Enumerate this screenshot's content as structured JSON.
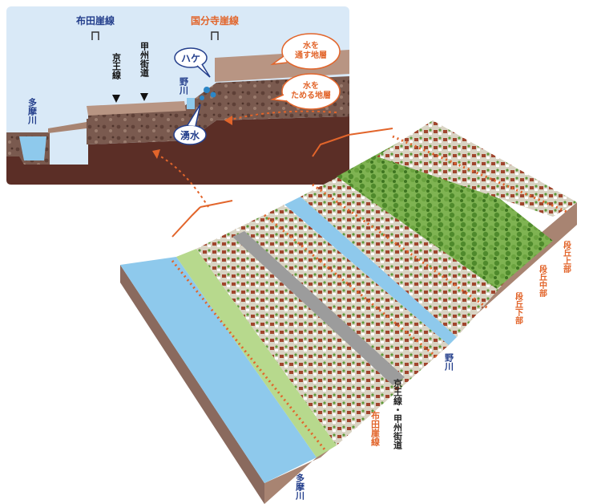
{
  "cross_section": {
    "labels": {
      "fuda_cliff": "布田崖線",
      "kokubunji_cliff": "国分寺崖線",
      "keio_line": "京王線",
      "koshu_kaido": "甲州街道",
      "no_river": "野川",
      "tama_river": "多摩川",
      "hake": "ハケ",
      "spring": "湧水",
      "permeable_layer": "水を\n通す地層",
      "retaining_layer": "水を\nためる地層"
    }
  },
  "birdseye": {
    "labels": {
      "no_river": "野川",
      "tama_river": "多摩川",
      "fuda_cliff": "布田崖線",
      "keio_koshu": "京王線・甲州街道",
      "terrace_upper": "段丘上部",
      "terrace_middle": "段丘中部",
      "terrace_lower": "段丘下部"
    }
  },
  "colors": {
    "sky": "#d9e9f7",
    "water": "#8ec9ec",
    "dark_soil": "#5b2e26",
    "mid_soil": "#8a6a5e",
    "light_soil": "#b89583",
    "accent_orange": "#e2652b",
    "forest": "#5f9a3a",
    "text_blue": "#243f8c",
    "text_orange": "#e2652b"
  }
}
